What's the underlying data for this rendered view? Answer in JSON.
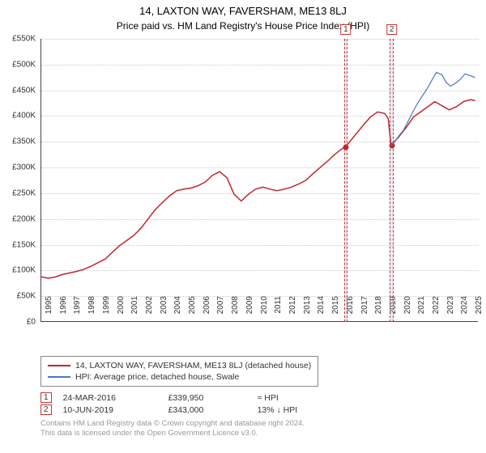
{
  "title": "14, LAXTON WAY, FAVERSHAM, ME13 8LJ",
  "subtitle": "Price paid vs. HM Land Registry's House Price Index (HPI)",
  "chart": {
    "type": "line",
    "ylim": [
      0,
      550000
    ],
    "ytick_step": 50000,
    "ytick_prefix": "£",
    "ytick_suffix_k": "K",
    "xlim": [
      1995,
      2025.5
    ],
    "xticks": [
      1995,
      1996,
      1997,
      1998,
      1999,
      2000,
      2001,
      2002,
      2003,
      2004,
      2005,
      2006,
      2007,
      2008,
      2009,
      2010,
      2011,
      2012,
      2013,
      2014,
      2015,
      2016,
      2017,
      2018,
      2019,
      2020,
      2021,
      2022,
      2023,
      2024,
      2025
    ],
    "grid_color": "#cccccc",
    "background_color": "#ffffff",
    "series": [
      {
        "name": "14, LAXTON WAY, FAVERSHAM, ME13 8LJ (detached house)",
        "color": "#c1272d",
        "width": 1.5,
        "points": [
          [
            1995.0,
            88000
          ],
          [
            1995.5,
            85000
          ],
          [
            1996.0,
            87000
          ],
          [
            1996.5,
            92000
          ],
          [
            1997.0,
            95000
          ],
          [
            1997.5,
            98000
          ],
          [
            1998.0,
            102000
          ],
          [
            1998.5,
            108000
          ],
          [
            1999.0,
            115000
          ],
          [
            1999.5,
            122000
          ],
          [
            2000.0,
            135000
          ],
          [
            2000.5,
            148000
          ],
          [
            2001.0,
            158000
          ],
          [
            2001.5,
            168000
          ],
          [
            2002.0,
            182000
          ],
          [
            2002.5,
            200000
          ],
          [
            2003.0,
            218000
          ],
          [
            2003.5,
            232000
          ],
          [
            2004.0,
            245000
          ],
          [
            2004.5,
            255000
          ],
          [
            2005.0,
            258000
          ],
          [
            2005.5,
            260000
          ],
          [
            2006.0,
            265000
          ],
          [
            2006.5,
            272000
          ],
          [
            2007.0,
            285000
          ],
          [
            2007.5,
            292000
          ],
          [
            2008.0,
            280000
          ],
          [
            2008.5,
            248000
          ],
          [
            2009.0,
            235000
          ],
          [
            2009.5,
            248000
          ],
          [
            2010.0,
            258000
          ],
          [
            2010.5,
            262000
          ],
          [
            2011.0,
            258000
          ],
          [
            2011.5,
            255000
          ],
          [
            2012.0,
            258000
          ],
          [
            2012.5,
            262000
          ],
          [
            2013.0,
            268000
          ],
          [
            2013.5,
            275000
          ],
          [
            2014.0,
            288000
          ],
          [
            2014.5,
            300000
          ],
          [
            2015.0,
            312000
          ],
          [
            2015.5,
            325000
          ],
          [
            2016.0,
            336000
          ],
          [
            2016.23,
            339950
          ],
          [
            2016.5,
            348000
          ],
          [
            2017.0,
            365000
          ],
          [
            2017.5,
            382000
          ],
          [
            2018.0,
            398000
          ],
          [
            2018.5,
            408000
          ],
          [
            2019.0,
            405000
          ],
          [
            2019.25,
            395000
          ],
          [
            2019.44,
            343000
          ],
          [
            2019.5,
            345000
          ],
          [
            2020.0,
            360000
          ],
          [
            2020.5,
            378000
          ],
          [
            2021.0,
            398000
          ],
          [
            2021.5,
            408000
          ],
          [
            2022.0,
            418000
          ],
          [
            2022.5,
            428000
          ],
          [
            2023.0,
            420000
          ],
          [
            2023.5,
            412000
          ],
          [
            2024.0,
            418000
          ],
          [
            2024.5,
            428000
          ],
          [
            2025.0,
            432000
          ],
          [
            2025.3,
            430000
          ]
        ]
      },
      {
        "name": "HPI: Average price, detached house, Swale",
        "color": "#4a76c7",
        "width": 1.2,
        "points": [
          [
            2019.44,
            343000
          ],
          [
            2019.7,
            350000
          ],
          [
            2020.0,
            362000
          ],
          [
            2020.3,
            372000
          ],
          [
            2020.6,
            388000
          ],
          [
            2021.0,
            410000
          ],
          [
            2021.3,
            425000
          ],
          [
            2021.6,
            438000
          ],
          [
            2022.0,
            455000
          ],
          [
            2022.3,
            470000
          ],
          [
            2022.6,
            485000
          ],
          [
            2023.0,
            480000
          ],
          [
            2023.3,
            465000
          ],
          [
            2023.6,
            458000
          ],
          [
            2024.0,
            465000
          ],
          [
            2024.3,
            472000
          ],
          [
            2024.6,
            482000
          ],
          [
            2025.0,
            478000
          ],
          [
            2025.3,
            475000
          ]
        ]
      }
    ],
    "markers": [
      {
        "idx": "1",
        "x": 2016.23,
        "band_width_years": 0.25
      },
      {
        "idx": "2",
        "x": 2019.44,
        "band_width_years": 0.25
      }
    ],
    "sale_points": [
      {
        "x": 2016.23,
        "y": 339950,
        "color": "#c1272d"
      },
      {
        "x": 2019.44,
        "y": 343000,
        "color": "#c1272d"
      }
    ]
  },
  "legend": {
    "series": [
      {
        "label": "14, LAXTON WAY, FAVERSHAM, ME13 8LJ (detached house)",
        "color": "#c1272d"
      },
      {
        "label": "HPI: Average price, detached house, Swale",
        "color": "#4a76c7"
      }
    ]
  },
  "sales": [
    {
      "idx": "1",
      "date": "24-MAR-2016",
      "price": "£339,950",
      "rel": "≈ HPI"
    },
    {
      "idx": "2",
      "date": "10-JUN-2019",
      "price": "£343,000",
      "rel": "13% ↓ HPI"
    }
  ],
  "footer": {
    "line1": "Contains HM Land Registry data © Crown copyright and database right 2024.",
    "line2": "This data is licensed under the Open Government Licence v3.0."
  }
}
